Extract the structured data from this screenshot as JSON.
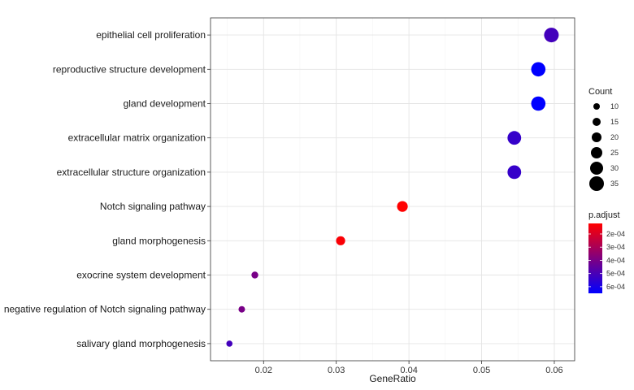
{
  "chart_data": {
    "type": "scatter",
    "xlabel": "GeneRatio",
    "ylabel": "",
    "xlim": [
      0.0127,
      0.0628
    ],
    "xticks": [
      0.02,
      0.03,
      0.04,
      0.05,
      0.06
    ],
    "xtick_labels": [
      "0.02",
      "0.03",
      "0.04",
      "0.05",
      "0.06"
    ],
    "grid": true,
    "categories": [
      "epithelial cell proliferation",
      "reproductive structure development",
      "gland development",
      "extracellular matrix organization",
      "extracellular structure organization",
      "Notch signaling pathway",
      "gland morphogenesis",
      "exocrine system development",
      "negative regulation of Notch signaling pathway",
      "salivary gland morphogenesis"
    ],
    "points": [
      {
        "category": "epithelial cell proliferation",
        "x": 0.0596,
        "count": 35,
        "p_adjust": 0.00051
      },
      {
        "category": "reproductive structure development",
        "x": 0.0578,
        "count": 34,
        "p_adjust": 0.00065
      },
      {
        "category": "gland development",
        "x": 0.0578,
        "count": 34,
        "p_adjust": 0.00065
      },
      {
        "category": "extracellular matrix organization",
        "x": 0.0545,
        "count": 32,
        "p_adjust": 0.00054
      },
      {
        "category": "extracellular structure organization",
        "x": 0.0545,
        "count": 32,
        "p_adjust": 0.00054
      },
      {
        "category": "Notch signaling pathway",
        "x": 0.0391,
        "count": 23,
        "p_adjust": 0.00012
      },
      {
        "category": "gland morphogenesis",
        "x": 0.0306,
        "count": 18,
        "p_adjust": 0.00013
      },
      {
        "category": "exocrine system development",
        "x": 0.0188,
        "count": 11,
        "p_adjust": 0.0004
      },
      {
        "category": "negative regulation of Notch signaling pathway",
        "x": 0.017,
        "count": 10,
        "p_adjust": 0.0004
      },
      {
        "category": "salivary gland morphogenesis",
        "x": 0.0153,
        "count": 9,
        "p_adjust": 0.00051
      }
    ],
    "legend": {
      "position": "right",
      "size": {
        "title": "Count",
        "values": [
          10,
          15,
          20,
          25,
          30,
          35
        ],
        "labels": [
          "10",
          "15",
          "20",
          "25",
          "30",
          "35"
        ]
      },
      "color": {
        "title": "p.adjust",
        "range": [
          0.00012,
          0.00065
        ],
        "ticks": [
          0.0002,
          0.0003,
          0.0004,
          0.0005,
          0.0006
        ],
        "labels": [
          "2e-04",
          "3e-04",
          "4e-04",
          "5e-04",
          "6e-04"
        ],
        "low_color": "#ff0000",
        "high_color": "#0000ff"
      }
    }
  }
}
